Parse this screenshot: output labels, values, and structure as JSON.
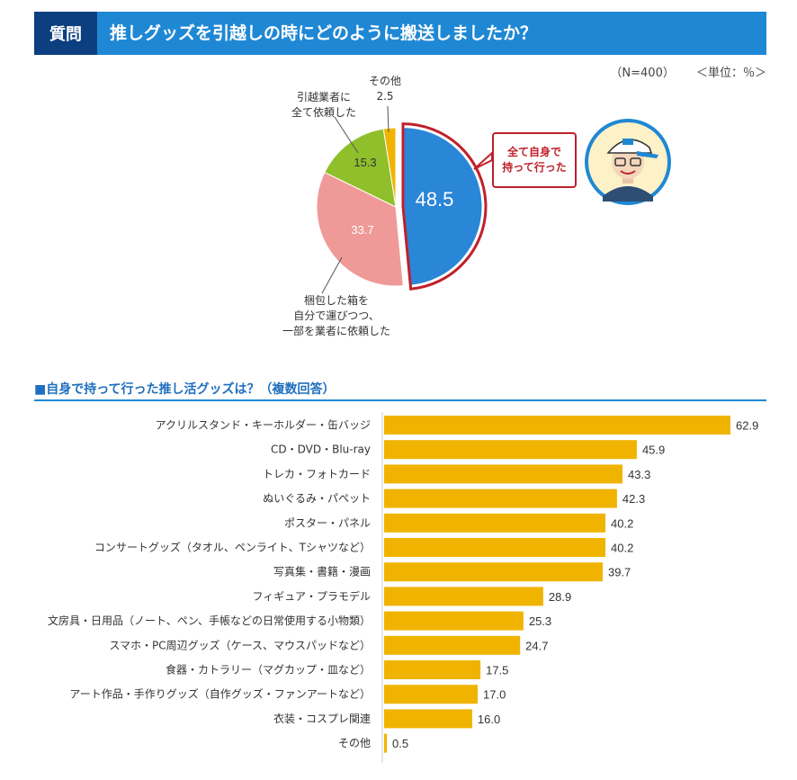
{
  "header": {
    "tag": "質問",
    "title": "推しグッズを引越しの時にどのように搬送しましたか？"
  },
  "meta": {
    "n": "（N=400）",
    "unit": "＜単位：％＞"
  },
  "callout": {
    "line1": "全て自身で",
    "line2": "持って行った"
  },
  "colors": {
    "header": "#1f88d4",
    "header_tag": "#0c3f80",
    "slice_self": "#2a86d6",
    "slice_mixed": "#ef9a98",
    "slice_movers": "#8fbf2a",
    "slice_other": "#f0b400",
    "highlight": "#c0202a",
    "bar": "#f0b400"
  },
  "chart_data": [
    {
      "type": "pie",
      "title": "推しグッズを引越しの時にどのように搬送しましたか？",
      "note": "（N=400） ＜単位：％＞",
      "slices": [
        {
          "label": "全て自身で持って行った",
          "value": 48.5,
          "display": "48.5"
        },
        {
          "label": "梱包した箱を自分で運びつつ、一部を業者に依頼した",
          "value": 33.7,
          "display": "33.7"
        },
        {
          "label": "引越業者に全て依頼した",
          "value": 15.3,
          "display": "15.3"
        },
        {
          "label": "その他",
          "value": 2.5,
          "display": "2.5"
        }
      ],
      "labels": {
        "other_line1": "その他",
        "other_value": "2.5",
        "movers_line1": "引越業者に",
        "movers_line2": "全て依頼した",
        "mixed_line1": "梱包した箱を",
        "mixed_line2": "自分で運びつつ、",
        "mixed_line3": "一部を業者に依頼した"
      }
    },
    {
      "type": "bar",
      "orientation": "horizontal",
      "title": "■自身で持って行った推し活グッズは？（複数回答）",
      "xlim": [
        0,
        70
      ],
      "categories": [
        "アクリルスタンド・キーホルダー・缶バッジ",
        "CD・DVD・Blu-ray",
        "トレカ・フォトカード",
        "ぬいぐるみ・パペット",
        "ポスター・パネル",
        "コンサートグッズ（タオル、ペンライト、Tシャツなど）",
        "写真集・書籍・漫画",
        "フィギュア・プラモデル",
        "文房具・日用品（ノート、ペン、手帳などの日常使用する小物類）",
        "スマホ・PC周辺グッズ（ケース、マウスパッドなど）",
        "食器・カトラリー（マグカップ・皿など）",
        "アート作品・手作りグッズ（自作グッズ・ファンアートなど）",
        "衣装・コスプレ関連",
        "その他"
      ],
      "values": [
        62.9,
        45.9,
        43.3,
        42.3,
        40.2,
        40.2,
        39.7,
        28.9,
        25.3,
        24.7,
        17.5,
        17.0,
        16.0,
        0.5
      ],
      "value_labels": [
        "62.9",
        "45.9",
        "43.3",
        "42.3",
        "40.2",
        "40.2",
        "39.7",
        "28.9",
        "25.3",
        "24.7",
        "17.5",
        "17.0",
        "16.0",
        "0.5"
      ]
    }
  ]
}
